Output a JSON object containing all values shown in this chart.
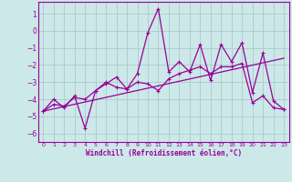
{
  "xlabel": "Windchill (Refroidissement éolien,°C)",
  "bg_color": "#cce8e8",
  "grid_color": "#aacccc",
  "line_color": "#990099",
  "xlim": [
    -0.5,
    23.5
  ],
  "ylim": [
    -6.5,
    1.7
  ],
  "xticks": [
    0,
    1,
    2,
    3,
    4,
    5,
    6,
    7,
    8,
    9,
    10,
    11,
    12,
    13,
    14,
    15,
    16,
    17,
    18,
    19,
    20,
    21,
    22,
    23
  ],
  "yticks": [
    1,
    0,
    -1,
    -2,
    -3,
    -4,
    -5,
    -6
  ],
  "zigzag_x": [
    0,
    1,
    2,
    3,
    4,
    5,
    6,
    7,
    8,
    9,
    10,
    11,
    12,
    13,
    14,
    15,
    16,
    17,
    18,
    19,
    20,
    21,
    22,
    23
  ],
  "zigzag_y": [
    -4.7,
    -4.0,
    -4.5,
    -3.8,
    -5.7,
    -3.5,
    -3.1,
    -2.7,
    -3.4,
    -2.5,
    -0.1,
    1.3,
    -2.4,
    -1.8,
    -2.4,
    -0.8,
    -2.9,
    -0.8,
    -1.8,
    -0.7,
    -3.6,
    -1.3,
    -4.1,
    -4.6
  ],
  "trend1_x": [
    0,
    1,
    2,
    3,
    4,
    5,
    6,
    7,
    8,
    9,
    10,
    11,
    12,
    13,
    14,
    15,
    16,
    17,
    18,
    19,
    20,
    21,
    22,
    23
  ],
  "trend1_y": [
    -4.7,
    -4.3,
    -4.4,
    -3.9,
    -4.0,
    -3.5,
    -3.0,
    -3.3,
    -3.4,
    -3.0,
    -3.1,
    -3.5,
    -2.8,
    -2.5,
    -2.3,
    -2.1,
    -2.5,
    -2.1,
    -2.1,
    -1.9,
    -4.2,
    -3.8,
    -4.5,
    -4.6
  ],
  "trend2_x": [
    0,
    23
  ],
  "trend2_y": [
    -4.7,
    -1.6
  ]
}
